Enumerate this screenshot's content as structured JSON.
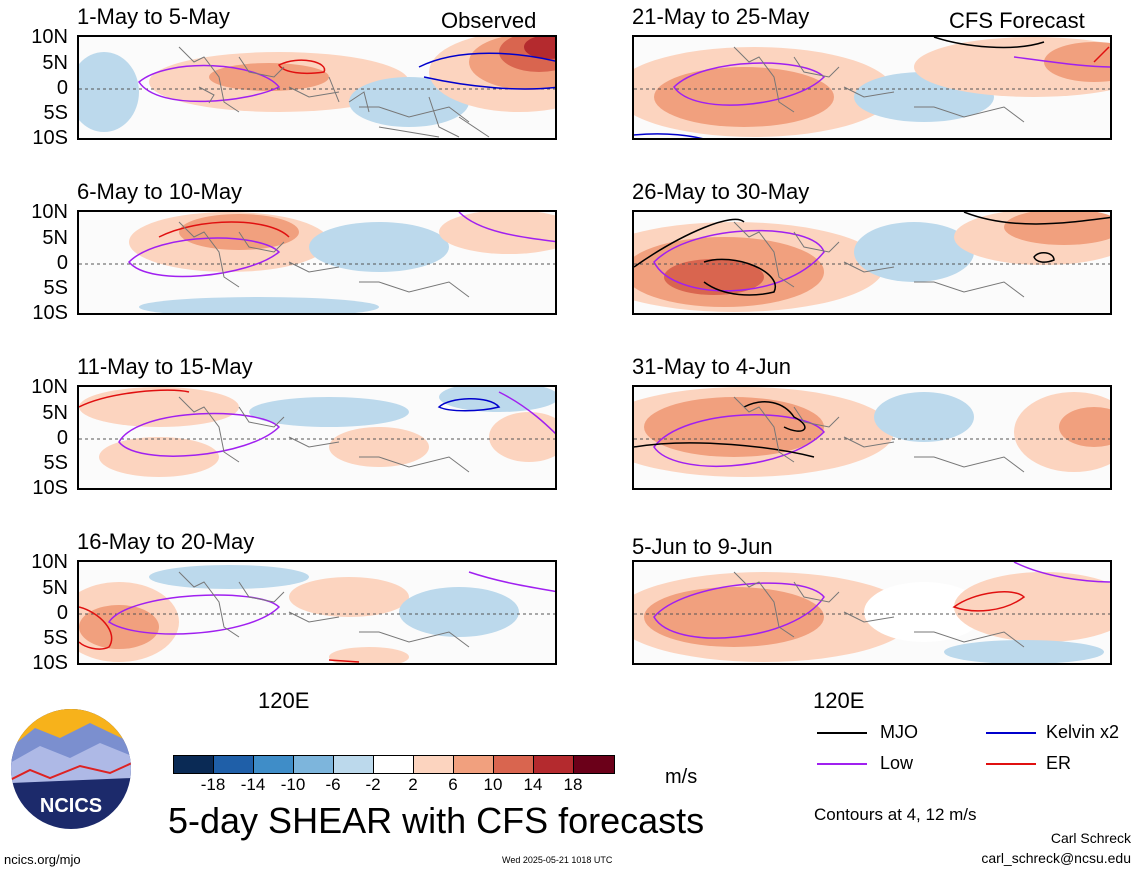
{
  "panels": [
    {
      "title": "1-May to 5-May",
      "tag": "Observed"
    },
    {
      "title": "21-May to 25-May",
      "tag": "CFS Forecast"
    },
    {
      "title": "6-May to 10-May",
      "tag": ""
    },
    {
      "title": "26-May to 30-May",
      "tag": ""
    },
    {
      "title": "11-May to 15-May",
      "tag": ""
    },
    {
      "title": "31-May to 4-Jun",
      "tag": ""
    },
    {
      "title": "16-May to 20-May",
      "tag": ""
    },
    {
      "title": "5-Jun to 9-Jun",
      "tag": ""
    }
  ],
  "lat_labels": [
    "10N",
    "5N",
    "0",
    "5S",
    "10S"
  ],
  "x_label": "120E",
  "legend": {
    "mjo": "MJO",
    "low": "Low",
    "kelvin": "Kelvin x2",
    "er": "ER",
    "contours": "Contours at 4, 12 m/s",
    "colors": {
      "mjo": "#000000",
      "low": "#a020f0",
      "kelvin": "#0000cc",
      "er": "#e01010"
    }
  },
  "colorbar": {
    "colors": [
      "#0a2a55",
      "#1f5fa8",
      "#3f8dc8",
      "#7db5dc",
      "#bcd9ec",
      "#ffffff",
      "#fcd4bf",
      "#f1a07e",
      "#d9654f",
      "#b42a2e",
      "#6b0019"
    ],
    "ticks": [
      "-18",
      "-14",
      "-10",
      "-6",
      "-2",
      "2",
      "6",
      "10",
      "14",
      "18"
    ],
    "unit": "m/s"
  },
  "main_title": "5-day SHEAR with CFS forecasts",
  "logo_text": "NCICS",
  "footer": {
    "url": "ncics.org/mjo",
    "timestamp": "Wed 2025-05-21 1018 UTC",
    "author": "Carl Schreck",
    "email": "carl_schreck@ncsu.edu"
  }
}
